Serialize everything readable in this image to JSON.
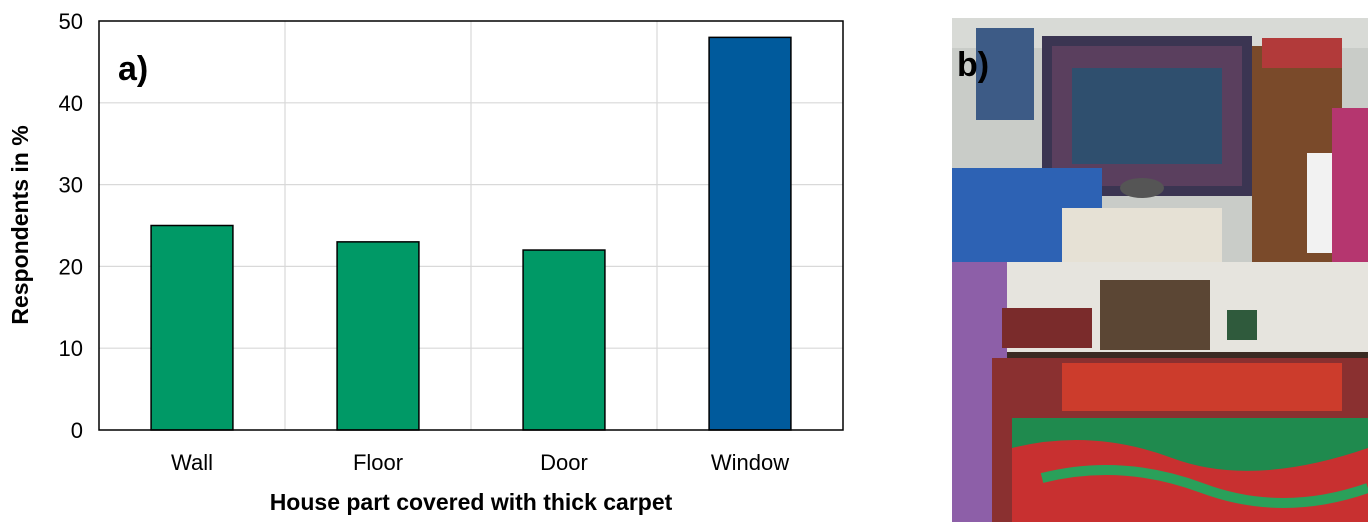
{
  "panel_a_label": "a)",
  "panel_b_label": "b)",
  "chart_data": {
    "type": "bar",
    "categories": [
      "Wall",
      "Floor",
      "Door",
      "Window"
    ],
    "values": [
      25,
      23,
      22,
      48
    ],
    "colors": [
      "#009966",
      "#009966",
      "#009966",
      "#005A9C"
    ],
    "title": "",
    "xlabel": "House part covered with thick carpet",
    "ylabel": "Respondents in %",
    "ylim": [
      0,
      50
    ],
    "yticks": [
      0,
      10,
      20,
      30,
      40,
      50
    ],
    "grid": true
  },
  "photos": {
    "top": "room interior with wall carpet, sofa and table",
    "bottom": "room interior with red and green floor carpet"
  }
}
